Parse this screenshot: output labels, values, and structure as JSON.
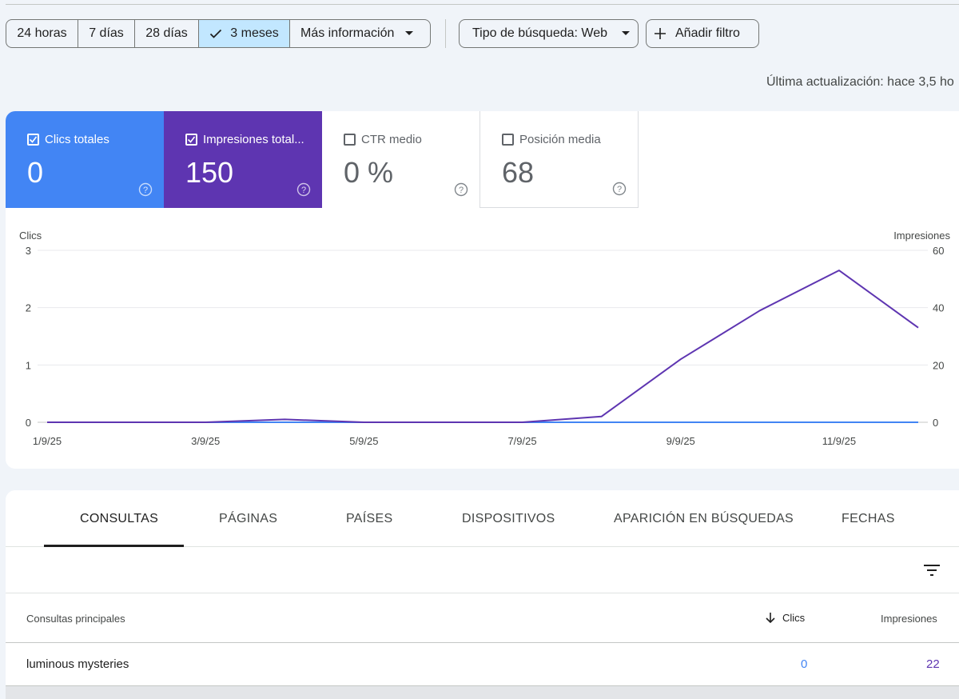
{
  "range_selector": {
    "options": [
      "24 horas",
      "7 días",
      "28 días",
      "3 meses",
      "Más información"
    ],
    "selected": "3 meses"
  },
  "filters": {
    "search_type": "Tipo de búsqueda: Web",
    "add_filter": "Añadir filtro"
  },
  "last_updated": "Última actualización: hace 3,5 ho",
  "metrics": [
    {
      "label": "Clics totales",
      "value": "0",
      "checked": true,
      "color": "#4285f4"
    },
    {
      "label": "Impresiones total...",
      "value": "150",
      "checked": true,
      "color": "#5e35b1"
    },
    {
      "label": "CTR medio",
      "value": "0 %",
      "checked": false,
      "color": "#ffffff"
    },
    {
      "label": "Posición media",
      "value": "68",
      "checked": false,
      "color": "#ffffff"
    }
  ],
  "chart_data": {
    "type": "line",
    "left_axis_label": "Clics",
    "right_axis_label": "Impresiones",
    "left_ticks": [
      "3",
      "2",
      "1",
      "0"
    ],
    "right_ticks": [
      "60",
      "40",
      "20",
      "0"
    ],
    "left_ylim": [
      0,
      3
    ],
    "right_ylim": [
      0,
      60
    ],
    "x_tick_labels": [
      "1/9/25",
      "3/9/25",
      "5/9/25",
      "7/9/25",
      "9/9/25",
      "11/9/25"
    ],
    "x": [
      "1/9/25",
      "2/9/25",
      "3/9/25",
      "4/9/25",
      "5/9/25",
      "6/9/25",
      "7/9/25",
      "8/9/25",
      "9/9/25",
      "10/9/25",
      "11/9/25",
      "12/9/25"
    ],
    "series": [
      {
        "name": "Clics",
        "axis": "left",
        "color": "#4285f4",
        "values": [
          0,
          0,
          0,
          0,
          0,
          0,
          0,
          0,
          0,
          0,
          0,
          0
        ]
      },
      {
        "name": "Impresiones",
        "axis": "right",
        "color": "#5e35b1",
        "values": [
          0,
          0,
          0,
          1,
          0,
          0,
          0,
          2,
          22,
          39,
          53,
          33
        ]
      }
    ],
    "grid": true
  },
  "tabs": [
    "CONSULTAS",
    "PÁGINAS",
    "PAÍSES",
    "DISPOSITIVOS",
    "APARICIÓN EN BÚSQUEDAS",
    "FECHAS"
  ],
  "table": {
    "columns": [
      "Consultas principales",
      "Clics",
      "Impresiones"
    ],
    "rows": [
      {
        "query": "luminous mysteries",
        "clicks": "0",
        "impressions": "22"
      }
    ]
  }
}
